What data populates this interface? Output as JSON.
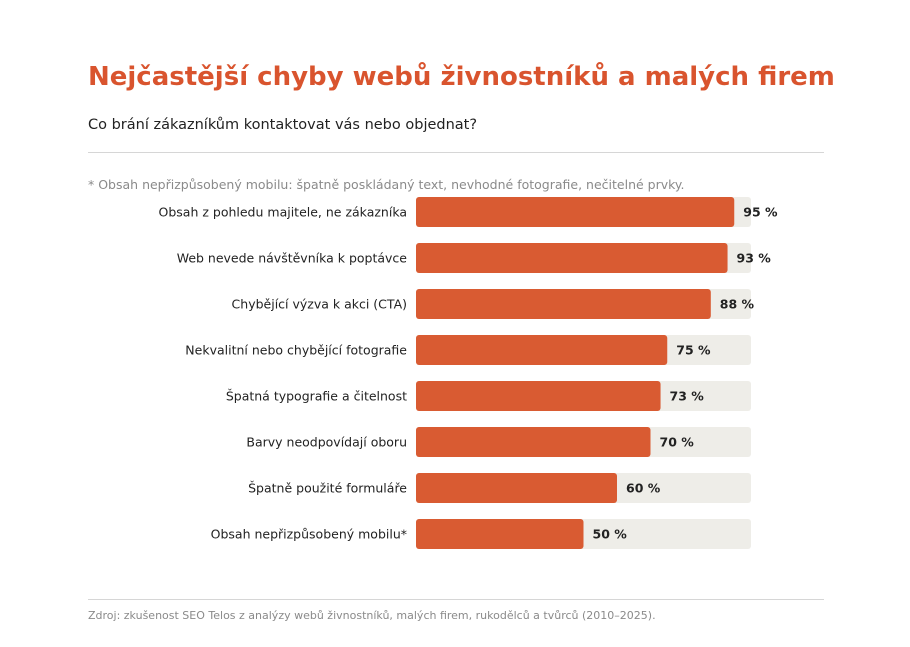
{
  "title": "Nejčastější chyby webů živnostníků a malých firem",
  "subtitle": "Co brání zákazníkům kontaktovat vás nebo objednat?",
  "footnote": "* Obsah nepřizpůsobený mobilu: špatně poskládaný text, nevhodné fotografie, nečitelné prvky.",
  "source": "Zdroj: zkušenost SEO Telos z analýzy webů živnostníků, malých firem, rukodělců a tvůrců (2010–2025).",
  "colors": {
    "bar": "#d95b32",
    "track": "#eeede8",
    "title": "#d9542e"
  },
  "chart_data": {
    "type": "bar",
    "orientation": "horizontal",
    "categories": [
      "Obsah z pohledu majitele, ne zákazníka",
      "Web nevede návštěvníka k poptávce",
      "Chybějící výzva k akci (CTA)",
      "Nekvalitní nebo chybějící fotografie",
      "Špatná typografie a čitelnost",
      "Barvy neodpovídají oboru",
      "Špatně použité formuláře",
      "Obsah nepřizpůsobený mobilu*"
    ],
    "values": [
      95,
      93,
      88,
      75,
      73,
      70,
      60,
      50
    ],
    "value_labels": [
      "95 %",
      "93 %",
      "88 %",
      "75 %",
      "73 %",
      "70 %",
      "60 %",
      "50 %"
    ],
    "xlim": [
      0,
      100
    ],
    "unit": "%",
    "grid": false
  }
}
